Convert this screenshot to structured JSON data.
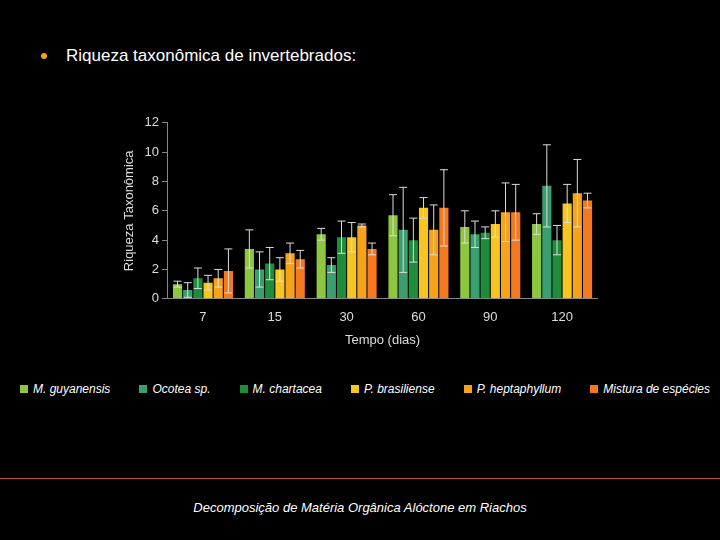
{
  "heading": "Riqueza taxonômica de invertebrados:",
  "footer": "Decomposição de Matéria Orgânica Alóctone em Riachos",
  "chart_data": {
    "type": "bar",
    "x_label": "Tempo (dias)",
    "y_label": "Riqueza Taxonômica",
    "categories": [
      "7",
      "15",
      "30",
      "60",
      "90",
      "120"
    ],
    "ylim": [
      0,
      12
    ],
    "yticks": [
      0,
      2,
      4,
      6,
      8,
      10,
      12
    ],
    "grid": false,
    "legend": "bottom",
    "series": [
      {
        "name": "M. guyanensis",
        "color": "#8dc63f",
        "values": [
          1.0,
          3.4,
          4.4,
          5.7,
          4.9,
          5.1
        ],
        "errors": [
          0.2,
          1.3,
          0.4,
          1.4,
          1.1,
          0.7
        ]
      },
      {
        "name": "Ocotea sp.",
        "color": "#3a9e6e",
        "values": [
          0.6,
          2.0,
          2.3,
          4.7,
          4.4,
          7.7
        ],
        "errors": [
          0.5,
          1.2,
          0.5,
          2.9,
          0.9,
          2.8
        ]
      },
      {
        "name": "M. chartacea",
        "color": "#1e8c3a",
        "values": [
          1.4,
          2.4,
          4.2,
          4.0,
          4.5,
          4.0
        ],
        "errors": [
          0.7,
          1.1,
          1.1,
          1.5,
          0.4,
          1.0
        ]
      },
      {
        "name": "P. brasiliense",
        "color": "#f7c520",
        "values": [
          1.1,
          2.0,
          4.2,
          6.2,
          5.1,
          6.5
        ],
        "errors": [
          0.5,
          0.8,
          1.0,
          0.7,
          0.9,
          1.3
        ]
      },
      {
        "name": "P. heptaphyllum",
        "color": "#f7a21b",
        "values": [
          1.4,
          3.1,
          5.0,
          4.7,
          5.9,
          7.2
        ],
        "errors": [
          0.6,
          0.7,
          0.1,
          1.7,
          2.0,
          2.3
        ]
      },
      {
        "name": "Mistura de espécies",
        "color": "#f47920",
        "values": [
          1.9,
          2.7,
          3.4,
          6.2,
          5.9,
          6.7
        ],
        "errors": [
          1.5,
          0.6,
          0.4,
          2.6,
          1.9,
          0.5
        ]
      }
    ]
  }
}
